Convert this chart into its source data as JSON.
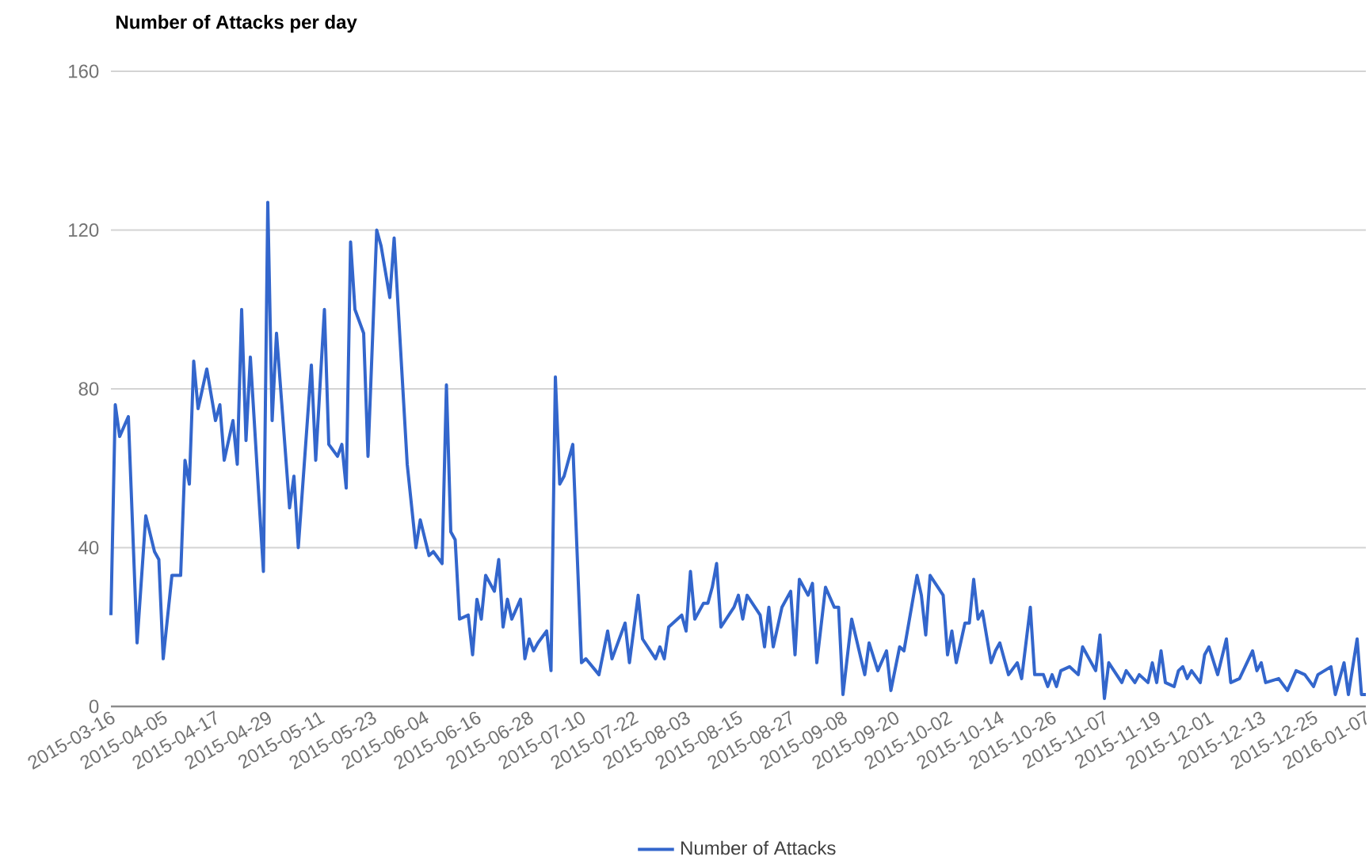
{
  "chart_data": {
    "type": "line",
    "title": "Number of Attacks per day",
    "categories": [
      "2015-03-16",
      null,
      null,
      null,
      null,
      null,
      null,
      null,
      null,
      null,
      null,
      null,
      "2015-04-05",
      null,
      null,
      null,
      null,
      null,
      null,
      null,
      null,
      null,
      null,
      null,
      "2015-04-17",
      null,
      null,
      null,
      null,
      null,
      null,
      null,
      null,
      null,
      null,
      null,
      "2015-04-29",
      null,
      null,
      null,
      null,
      null,
      null,
      null,
      null,
      null,
      null,
      null,
      "2015-05-11",
      null,
      null,
      null,
      null,
      null,
      null,
      null,
      null,
      null,
      null,
      null,
      "2015-05-23",
      null,
      null,
      null,
      null,
      null,
      null,
      null,
      null,
      null,
      null,
      null,
      "2015-06-04",
      null,
      null,
      null,
      null,
      null,
      null,
      null,
      null,
      null,
      null,
      null,
      "2015-06-16",
      null,
      null,
      null,
      null,
      null,
      null,
      null,
      null,
      null,
      null,
      null,
      "2015-06-28",
      null,
      null,
      null,
      null,
      null,
      null,
      null,
      null,
      null,
      null,
      null,
      "2015-07-10",
      null,
      null,
      null,
      null,
      null,
      null,
      null,
      null,
      null,
      null,
      null,
      "2015-07-22",
      null,
      null,
      null,
      null,
      null,
      null,
      null,
      null,
      null,
      null,
      null,
      "2015-08-03",
      null,
      null,
      null,
      null,
      null,
      null,
      null,
      null,
      null,
      null,
      null,
      "2015-08-15",
      null,
      null,
      null,
      null,
      null,
      null,
      null,
      null,
      null,
      null,
      null,
      "2015-08-27",
      null,
      null,
      null,
      null,
      null,
      null,
      null,
      null,
      null,
      null,
      null,
      "2015-09-08",
      null,
      null,
      null,
      null,
      null,
      null,
      null,
      null,
      null,
      null,
      null,
      "2015-09-20",
      null,
      null,
      null,
      null,
      null,
      null,
      null,
      null,
      null,
      null,
      null,
      "2015-10-02",
      null,
      null,
      null,
      null,
      null,
      null,
      null,
      null,
      null,
      null,
      null,
      "2015-10-14",
      null,
      null,
      null,
      null,
      null,
      null,
      null,
      null,
      null,
      null,
      null,
      "2015-10-26",
      null,
      null,
      null,
      null,
      null,
      null,
      null,
      null,
      null,
      null,
      null,
      "2015-11-07",
      null,
      null,
      null,
      null,
      null,
      null,
      null,
      null,
      null,
      null,
      null,
      "2015-11-19",
      null,
      null,
      null,
      null,
      null,
      null,
      null,
      null,
      null,
      null,
      null,
      "2015-12-01",
      null,
      null,
      null,
      null,
      null,
      null,
      null,
      null,
      null,
      null,
      null,
      "2015-12-13",
      null,
      null,
      null,
      null,
      null,
      null,
      null,
      null,
      null,
      null,
      null,
      "2015-12-25",
      null,
      null,
      null,
      null,
      null,
      null,
      null,
      null,
      null,
      null,
      null,
      "2016-01-07"
    ],
    "series": [
      {
        "name": "Number of Attacks",
        "color": "#3366cc",
        "values": [
          23,
          76,
          68,
          null,
          73,
          null,
          16,
          null,
          48,
          null,
          39,
          37,
          12,
          null,
          33,
          null,
          33,
          62,
          56,
          87,
          75,
          null,
          85,
          null,
          72,
          76,
          62,
          null,
          72,
          61,
          100,
          67,
          88,
          null,
          null,
          34,
          127,
          72,
          94,
          null,
          null,
          50,
          58,
          40,
          null,
          null,
          86,
          62,
          null,
          100,
          66,
          null,
          63,
          66,
          55,
          117,
          100,
          null,
          94,
          63,
          null,
          120,
          116,
          null,
          103,
          118,
          null,
          null,
          61,
          null,
          40,
          47,
          null,
          38,
          39,
          null,
          36,
          81,
          44,
          42,
          22,
          null,
          23,
          13,
          27,
          22,
          33,
          null,
          29,
          37,
          20,
          27,
          22,
          null,
          27,
          12,
          17,
          14,
          16,
          null,
          19,
          9,
          83,
          56,
          58,
          null,
          66,
          null,
          11,
          12,
          null,
          null,
          8,
          null,
          19,
          12,
          null,
          null,
          21,
          11,
          null,
          28,
          17,
          null,
          null,
          12,
          15,
          12,
          20,
          null,
          null,
          23,
          19,
          34,
          22,
          null,
          26,
          26,
          30,
          36,
          20,
          null,
          null,
          25,
          28,
          22,
          28,
          null,
          null,
          23,
          15,
          25,
          15,
          null,
          25,
          null,
          29,
          13,
          32,
          null,
          28,
          31,
          11,
          null,
          30,
          null,
          25,
          25,
          3,
          null,
          22,
          null,
          null,
          8,
          16,
          null,
          9,
          null,
          14,
          4,
          null,
          15,
          14,
          null,
          null,
          33,
          28,
          18,
          33,
          null,
          null,
          28,
          13,
          19,
          11,
          null,
          21,
          21,
          32,
          22,
          24,
          null,
          11,
          14,
          16,
          null,
          8,
          null,
          11,
          7,
          null,
          25,
          8,
          null,
          8,
          5,
          8,
          5,
          9,
          null,
          10,
          null,
          8,
          15,
          null,
          null,
          9,
          18,
          2,
          11,
          null,
          null,
          6,
          9,
          null,
          6,
          8,
          null,
          6,
          11,
          6,
          14,
          6,
          null,
          5,
          9,
          10,
          7,
          9,
          null,
          6,
          13,
          15,
          null,
          8,
          null,
          17,
          6,
          null,
          7,
          null,
          null,
          14,
          9,
          11,
          6,
          null,
          null,
          7,
          null,
          4,
          null,
          9,
          null,
          8,
          null,
          5,
          8,
          null,
          null,
          10,
          3,
          null,
          11,
          3,
          null,
          17,
          3,
          3
        ]
      }
    ],
    "ylim": [
      0,
      160
    ],
    "yticks": [
      0,
      40,
      80,
      120,
      160
    ],
    "grid": "y",
    "legend": "bottom",
    "marker": "none",
    "line_style": "solid"
  }
}
